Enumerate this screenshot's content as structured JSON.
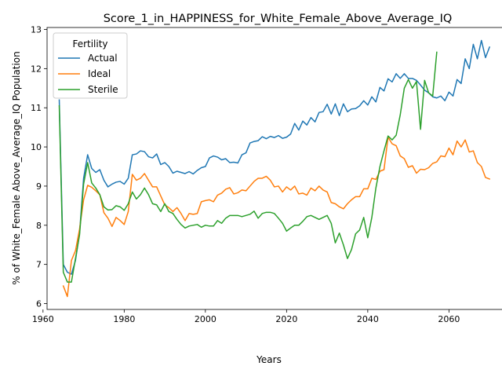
{
  "chart_data": {
    "type": "line",
    "title": "Score_1_in_HAPPINESS_for_White_Female_Above_Average_IQ",
    "xlabel": "Years",
    "ylabel": "% of White_Female Above_Average_IQ Population",
    "xlim": [
      1961,
      2075
    ],
    "ylim": [
      5.85,
      13.05
    ],
    "xticks": [
      1960,
      1980,
      2000,
      2020,
      2040,
      2060
    ],
    "yticks": [
      6,
      7,
      8,
      9,
      10,
      11,
      12,
      13
    ],
    "grid": false,
    "legend": {
      "title": "Fertility",
      "placement": "top-left"
    },
    "series": [
      {
        "name": "Actual",
        "color": "#1f77b4",
        "points": [
          [
            1964,
            11.2
          ],
          [
            1965,
            7.0
          ],
          [
            1966,
            6.8
          ],
          [
            1967,
            6.75
          ],
          [
            1968,
            7.1
          ],
          [
            1969,
            7.8
          ],
          [
            1970,
            9.2
          ],
          [
            1971,
            9.8
          ],
          [
            1972,
            9.45
          ],
          [
            1973,
            9.35
          ],
          [
            1974,
            9.42
          ],
          [
            1975,
            9.15
          ],
          [
            1976,
            8.98
          ],
          [
            1977,
            9.05
          ],
          [
            1978,
            9.1
          ],
          [
            1979,
            9.12
          ],
          [
            1980,
            9.05
          ],
          [
            1981,
            9.2
          ],
          [
            1982,
            9.8
          ],
          [
            1983,
            9.82
          ],
          [
            1984,
            9.9
          ],
          [
            1985,
            9.88
          ],
          [
            1986,
            9.75
          ],
          [
            1987,
            9.72
          ],
          [
            1988,
            9.82
          ],
          [
            1989,
            9.55
          ],
          [
            1990,
            9.6
          ],
          [
            1991,
            9.5
          ],
          [
            1992,
            9.33
          ],
          [
            1993,
            9.38
          ],
          [
            1994,
            9.35
          ],
          [
            1995,
            9.32
          ],
          [
            1996,
            9.37
          ],
          [
            1997,
            9.31
          ],
          [
            1998,
            9.4
          ],
          [
            1999,
            9.47
          ],
          [
            2000,
            9.5
          ],
          [
            2001,
            9.72
          ],
          [
            2002,
            9.77
          ],
          [
            2003,
            9.74
          ],
          [
            2004,
            9.67
          ],
          [
            2005,
            9.7
          ],
          [
            2006,
            9.6
          ],
          [
            2007,
            9.61
          ],
          [
            2008,
            9.59
          ],
          [
            2009,
            9.8
          ],
          [
            2010,
            9.85
          ],
          [
            2011,
            10.1
          ],
          [
            2012,
            10.14
          ],
          [
            2013,
            10.16
          ],
          [
            2014,
            10.26
          ],
          [
            2015,
            10.21
          ],
          [
            2016,
            10.27
          ],
          [
            2017,
            10.24
          ],
          [
            2018,
            10.29
          ],
          [
            2019,
            10.22
          ],
          [
            2020,
            10.25
          ],
          [
            2021,
            10.33
          ],
          [
            2022,
            10.6
          ],
          [
            2023,
            10.43
          ],
          [
            2024,
            10.66
          ],
          [
            2025,
            10.56
          ],
          [
            2026,
            10.75
          ],
          [
            2027,
            10.64
          ],
          [
            2028,
            10.88
          ],
          [
            2029,
            10.9
          ],
          [
            2030,
            11.09
          ],
          [
            2031,
            10.84
          ],
          [
            2032,
            11.1
          ],
          [
            2033,
            10.8
          ],
          [
            2034,
            11.1
          ],
          [
            2035,
            10.9
          ],
          [
            2036,
            10.97
          ],
          [
            2037,
            10.98
          ],
          [
            2038,
            11.05
          ],
          [
            2039,
            11.18
          ],
          [
            2040,
            11.07
          ],
          [
            2041,
            11.28
          ],
          [
            2042,
            11.15
          ],
          [
            2043,
            11.52
          ],
          [
            2044,
            11.43
          ],
          [
            2045,
            11.74
          ],
          [
            2046,
            11.66
          ],
          [
            2047,
            11.87
          ],
          [
            2048,
            11.75
          ],
          [
            2049,
            11.87
          ],
          [
            2050,
            11.75
          ],
          [
            2051,
            11.75
          ],
          [
            2052,
            11.7
          ],
          [
            2053,
            11.58
          ],
          [
            2054,
            11.45
          ],
          [
            2055,
            11.38
          ],
          [
            2056,
            11.28
          ],
          [
            2057,
            11.25
          ],
          [
            2058,
            11.3
          ],
          [
            2059,
            11.18
          ],
          [
            2060,
            11.4
          ],
          [
            2061,
            11.3
          ],
          [
            2062,
            11.72
          ],
          [
            2063,
            11.62
          ],
          [
            2064,
            12.25
          ],
          [
            2065,
            12.0
          ],
          [
            2066,
            12.62
          ],
          [
            2067,
            12.25
          ],
          [
            2068,
            12.72
          ],
          [
            2069,
            12.28
          ],
          [
            2070,
            12.55
          ]
        ]
      },
      {
        "name": "Ideal",
        "color": "#ff7f0e",
        "points": [
          [
            1965,
            6.45
          ],
          [
            1966,
            6.18
          ],
          [
            1967,
            7.1
          ],
          [
            1968,
            7.35
          ],
          [
            1969,
            7.9
          ],
          [
            1970,
            8.65
          ],
          [
            1971,
            9.02
          ],
          [
            1972,
            8.97
          ],
          [
            1973,
            8.88
          ],
          [
            1974,
            8.78
          ],
          [
            1975,
            8.32
          ],
          [
            1976,
            8.18
          ],
          [
            1977,
            7.97
          ],
          [
            1978,
            8.2
          ],
          [
            1979,
            8.12
          ],
          [
            1980,
            8.02
          ],
          [
            1981,
            8.35
          ],
          [
            1982,
            9.3
          ],
          [
            1983,
            9.15
          ],
          [
            1984,
            9.2
          ],
          [
            1985,
            9.32
          ],
          [
            1986,
            9.15
          ],
          [
            1987,
            8.98
          ],
          [
            1988,
            8.98
          ],
          [
            1989,
            8.75
          ],
          [
            1990,
            8.52
          ],
          [
            1991,
            8.45
          ],
          [
            1992,
            8.35
          ],
          [
            1993,
            8.45
          ],
          [
            1994,
            8.3
          ],
          [
            1995,
            8.12
          ],
          [
            1996,
            8.3
          ],
          [
            1997,
            8.28
          ],
          [
            1998,
            8.3
          ],
          [
            1999,
            8.6
          ],
          [
            2000,
            8.63
          ],
          [
            2001,
            8.65
          ],
          [
            2002,
            8.6
          ],
          [
            2003,
            8.77
          ],
          [
            2004,
            8.82
          ],
          [
            2005,
            8.92
          ],
          [
            2006,
            8.96
          ],
          [
            2007,
            8.8
          ],
          [
            2008,
            8.83
          ],
          [
            2009,
            8.9
          ],
          [
            2010,
            8.88
          ],
          [
            2011,
            9.0
          ],
          [
            2012,
            9.12
          ],
          [
            2013,
            9.2
          ],
          [
            2014,
            9.2
          ],
          [
            2015,
            9.25
          ],
          [
            2016,
            9.15
          ],
          [
            2017,
            8.98
          ],
          [
            2018,
            9.0
          ],
          [
            2019,
            8.85
          ],
          [
            2020,
            8.98
          ],
          [
            2021,
            8.9
          ],
          [
            2022,
            9.0
          ],
          [
            2023,
            8.8
          ],
          [
            2024,
            8.82
          ],
          [
            2025,
            8.77
          ],
          [
            2026,
            8.95
          ],
          [
            2027,
            8.88
          ],
          [
            2028,
            9.0
          ],
          [
            2029,
            8.9
          ],
          [
            2030,
            8.85
          ],
          [
            2031,
            8.58
          ],
          [
            2032,
            8.55
          ],
          [
            2033,
            8.47
          ],
          [
            2034,
            8.42
          ],
          [
            2035,
            8.55
          ],
          [
            2036,
            8.65
          ],
          [
            2037,
            8.73
          ],
          [
            2038,
            8.73
          ],
          [
            2039,
            8.93
          ],
          [
            2040,
            8.93
          ],
          [
            2041,
            9.2
          ],
          [
            2042,
            9.17
          ],
          [
            2043,
            9.38
          ],
          [
            2044,
            9.42
          ],
          [
            2045,
            10.25
          ],
          [
            2046,
            10.08
          ],
          [
            2047,
            10.03
          ],
          [
            2048,
            9.77
          ],
          [
            2049,
            9.7
          ],
          [
            2050,
            9.48
          ],
          [
            2051,
            9.52
          ],
          [
            2052,
            9.33
          ],
          [
            2053,
            9.43
          ],
          [
            2054,
            9.42
          ],
          [
            2055,
            9.47
          ],
          [
            2056,
            9.58
          ],
          [
            2057,
            9.62
          ],
          [
            2058,
            9.77
          ],
          [
            2059,
            9.75
          ],
          [
            2060,
            9.97
          ],
          [
            2061,
            9.8
          ],
          [
            2062,
            10.15
          ],
          [
            2063,
            10.0
          ],
          [
            2064,
            10.18
          ],
          [
            2065,
            9.87
          ],
          [
            2066,
            9.9
          ],
          [
            2067,
            9.6
          ],
          [
            2068,
            9.5
          ],
          [
            2069,
            9.22
          ],
          [
            2070,
            9.18
          ]
        ]
      },
      {
        "name": "Sterile",
        "color": "#2ca02c",
        "points": [
          [
            1964,
            11.05
          ],
          [
            1965,
            6.8
          ],
          [
            1966,
            6.55
          ],
          [
            1967,
            6.55
          ],
          [
            1968,
            7.15
          ],
          [
            1969,
            7.75
          ],
          [
            1970,
            9.05
          ],
          [
            1971,
            9.6
          ],
          [
            1972,
            9.08
          ],
          [
            1973,
            8.95
          ],
          [
            1974,
            8.78
          ],
          [
            1975,
            8.47
          ],
          [
            1976,
            8.39
          ],
          [
            1977,
            8.4
          ],
          [
            1978,
            8.5
          ],
          [
            1979,
            8.47
          ],
          [
            1980,
            8.38
          ],
          [
            1981,
            8.55
          ],
          [
            1982,
            8.85
          ],
          [
            1983,
            8.67
          ],
          [
            1984,
            8.78
          ],
          [
            1985,
            8.95
          ],
          [
            1986,
            8.78
          ],
          [
            1987,
            8.55
          ],
          [
            1988,
            8.52
          ],
          [
            1989,
            8.35
          ],
          [
            1990,
            8.55
          ],
          [
            1991,
            8.35
          ],
          [
            1992,
            8.3
          ],
          [
            1993,
            8.15
          ],
          [
            1994,
            8.02
          ],
          [
            1995,
            7.93
          ],
          [
            1996,
            7.98
          ],
          [
            1997,
            8.0
          ],
          [
            1998,
            8.02
          ],
          [
            1999,
            7.95
          ],
          [
            2000,
            8.0
          ],
          [
            2001,
            7.98
          ],
          [
            2002,
            7.98
          ],
          [
            2003,
            8.12
          ],
          [
            2004,
            8.05
          ],
          [
            2005,
            8.18
          ],
          [
            2006,
            8.25
          ],
          [
            2007,
            8.25
          ],
          [
            2008,
            8.25
          ],
          [
            2009,
            8.22
          ],
          [
            2010,
            8.25
          ],
          [
            2011,
            8.28
          ],
          [
            2012,
            8.36
          ],
          [
            2013,
            8.18
          ],
          [
            2014,
            8.3
          ],
          [
            2015,
            8.33
          ],
          [
            2016,
            8.33
          ],
          [
            2017,
            8.3
          ],
          [
            2018,
            8.18
          ],
          [
            2019,
            8.05
          ],
          [
            2020,
            7.85
          ],
          [
            2021,
            7.93
          ],
          [
            2022,
            8.0
          ],
          [
            2023,
            8.0
          ],
          [
            2024,
            8.1
          ],
          [
            2025,
            8.22
          ],
          [
            2026,
            8.25
          ],
          [
            2027,
            8.2
          ],
          [
            2028,
            8.15
          ],
          [
            2029,
            8.2
          ],
          [
            2030,
            8.25
          ],
          [
            2031,
            8.05
          ],
          [
            2032,
            7.55
          ],
          [
            2033,
            7.8
          ],
          [
            2034,
            7.5
          ],
          [
            2035,
            7.15
          ],
          [
            2036,
            7.38
          ],
          [
            2037,
            7.78
          ],
          [
            2038,
            7.88
          ],
          [
            2039,
            8.2
          ],
          [
            2040,
            7.68
          ],
          [
            2041,
            8.2
          ],
          [
            2042,
            8.95
          ],
          [
            2043,
            9.5
          ],
          [
            2044,
            9.9
          ],
          [
            2045,
            10.28
          ],
          [
            2046,
            10.18
          ],
          [
            2047,
            10.3
          ],
          [
            2048,
            10.82
          ],
          [
            2049,
            11.5
          ],
          [
            2050,
            11.72
          ],
          [
            2051,
            11.5
          ],
          [
            2052,
            11.67
          ],
          [
            2053,
            10.45
          ],
          [
            2054,
            11.7
          ],
          [
            2055,
            11.38
          ],
          [
            2056,
            11.3
          ],
          [
            2057,
            12.42
          ]
        ]
      }
    ]
  }
}
